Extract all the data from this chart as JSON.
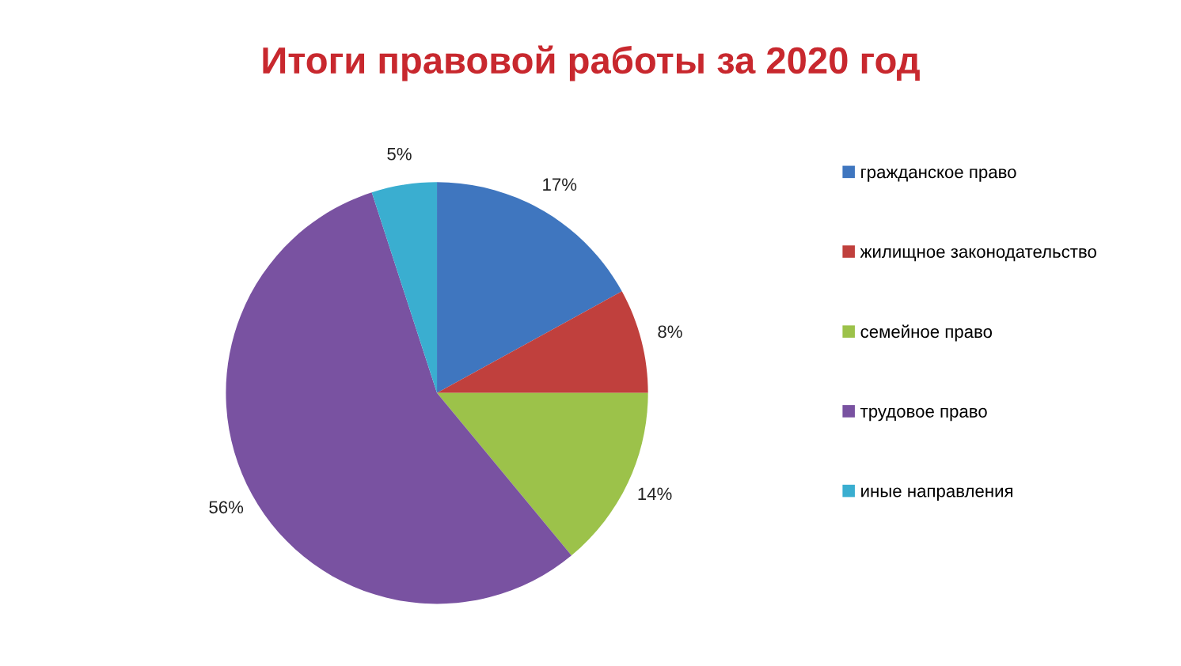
{
  "chart_data": {
    "type": "pie",
    "title": "Итоги правовой работы за 2020 год",
    "categories": [
      "гражданское право",
      "жилищное законодательство",
      "семейное право",
      "трудовое право",
      "иные направления"
    ],
    "values": [
      17,
      8,
      14,
      56,
      5
    ],
    "colors": [
      "#3f76bf",
      "#c0403d",
      "#9cc24a",
      "#7952a1",
      "#3aaed0"
    ],
    "value_labels": [
      "17%",
      "8%",
      "14%",
      "56%",
      "5%"
    ],
    "legend": "right"
  }
}
